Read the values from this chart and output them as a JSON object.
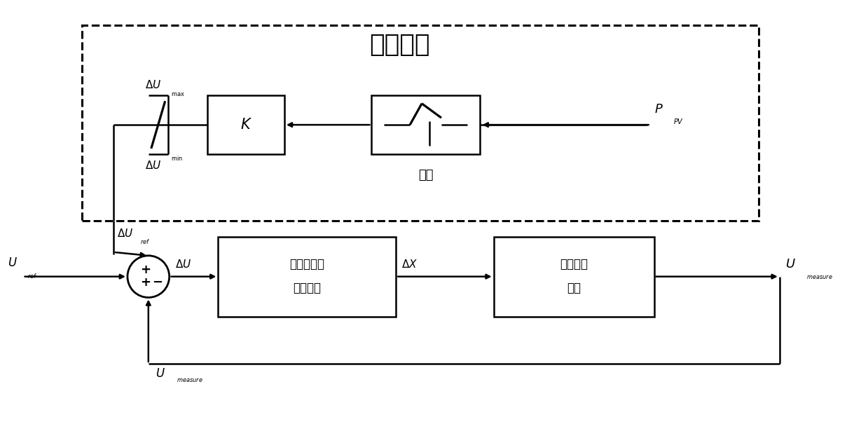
{
  "title": "额外控制",
  "bg_color": "#ffffff",
  "line_color": "#000000",
  "figsize": [
    12.39,
    6.25
  ],
  "dpi": 100,
  "ctrl_label1": "串联电抗器",
  "ctrl_label2": "的控制器",
  "volt_label1": "电压降低",
  "volt_label2": "策略",
  "deadzone_label": "死区"
}
